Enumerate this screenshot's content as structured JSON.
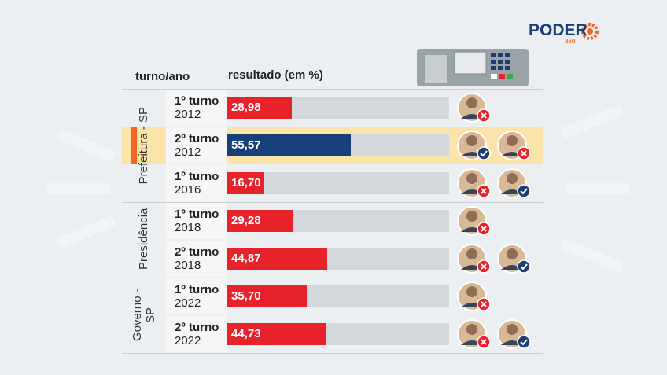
{
  "logo": "PODER",
  "logo_sub": "360",
  "chart_data": {
    "type": "bar",
    "orientation": "horizontal",
    "header": "turno/ano",
    "title": "resultado (em %)",
    "xlim": [
      0,
      100
    ],
    "color": "#e8222b",
    "groups": [
      {
        "label": "Prefeitura - SP",
        "categories": [
          [
            "1º turno",
            "2012"
          ],
          [
            "2º turno",
            "2012"
          ],
          [
            "1º turno",
            "2016"
          ]
        ],
        "values": [
          28.98,
          55.57,
          16.7
        ],
        "value_labels": [
          "28,98",
          "55,57",
          "16,70"
        ],
        "colors": [
          "#e8222b",
          "#173f7a",
          "#e8222b"
        ]
      },
      {
        "label": "Presidência",
        "categories": [
          [
            "1º turno",
            "2018"
          ],
          [
            "2º turno",
            "2018"
          ]
        ],
        "values": [
          29.28,
          44.87
        ],
        "value_labels": [
          "29,28",
          "44,87"
        ],
        "colors": [
          "#e8222b",
          "#e8222b"
        ]
      },
      {
        "label": "Governo - SP",
        "categories": [
          [
            "1º turno",
            "2022"
          ],
          [
            "2º turno",
            "2022"
          ]
        ],
        "values": [
          35.7,
          44.73
        ],
        "value_labels": [
          "35,70",
          "44,73"
        ],
        "colors": [
          "#e8222b",
          "#e8222b"
        ]
      }
    ]
  }
}
